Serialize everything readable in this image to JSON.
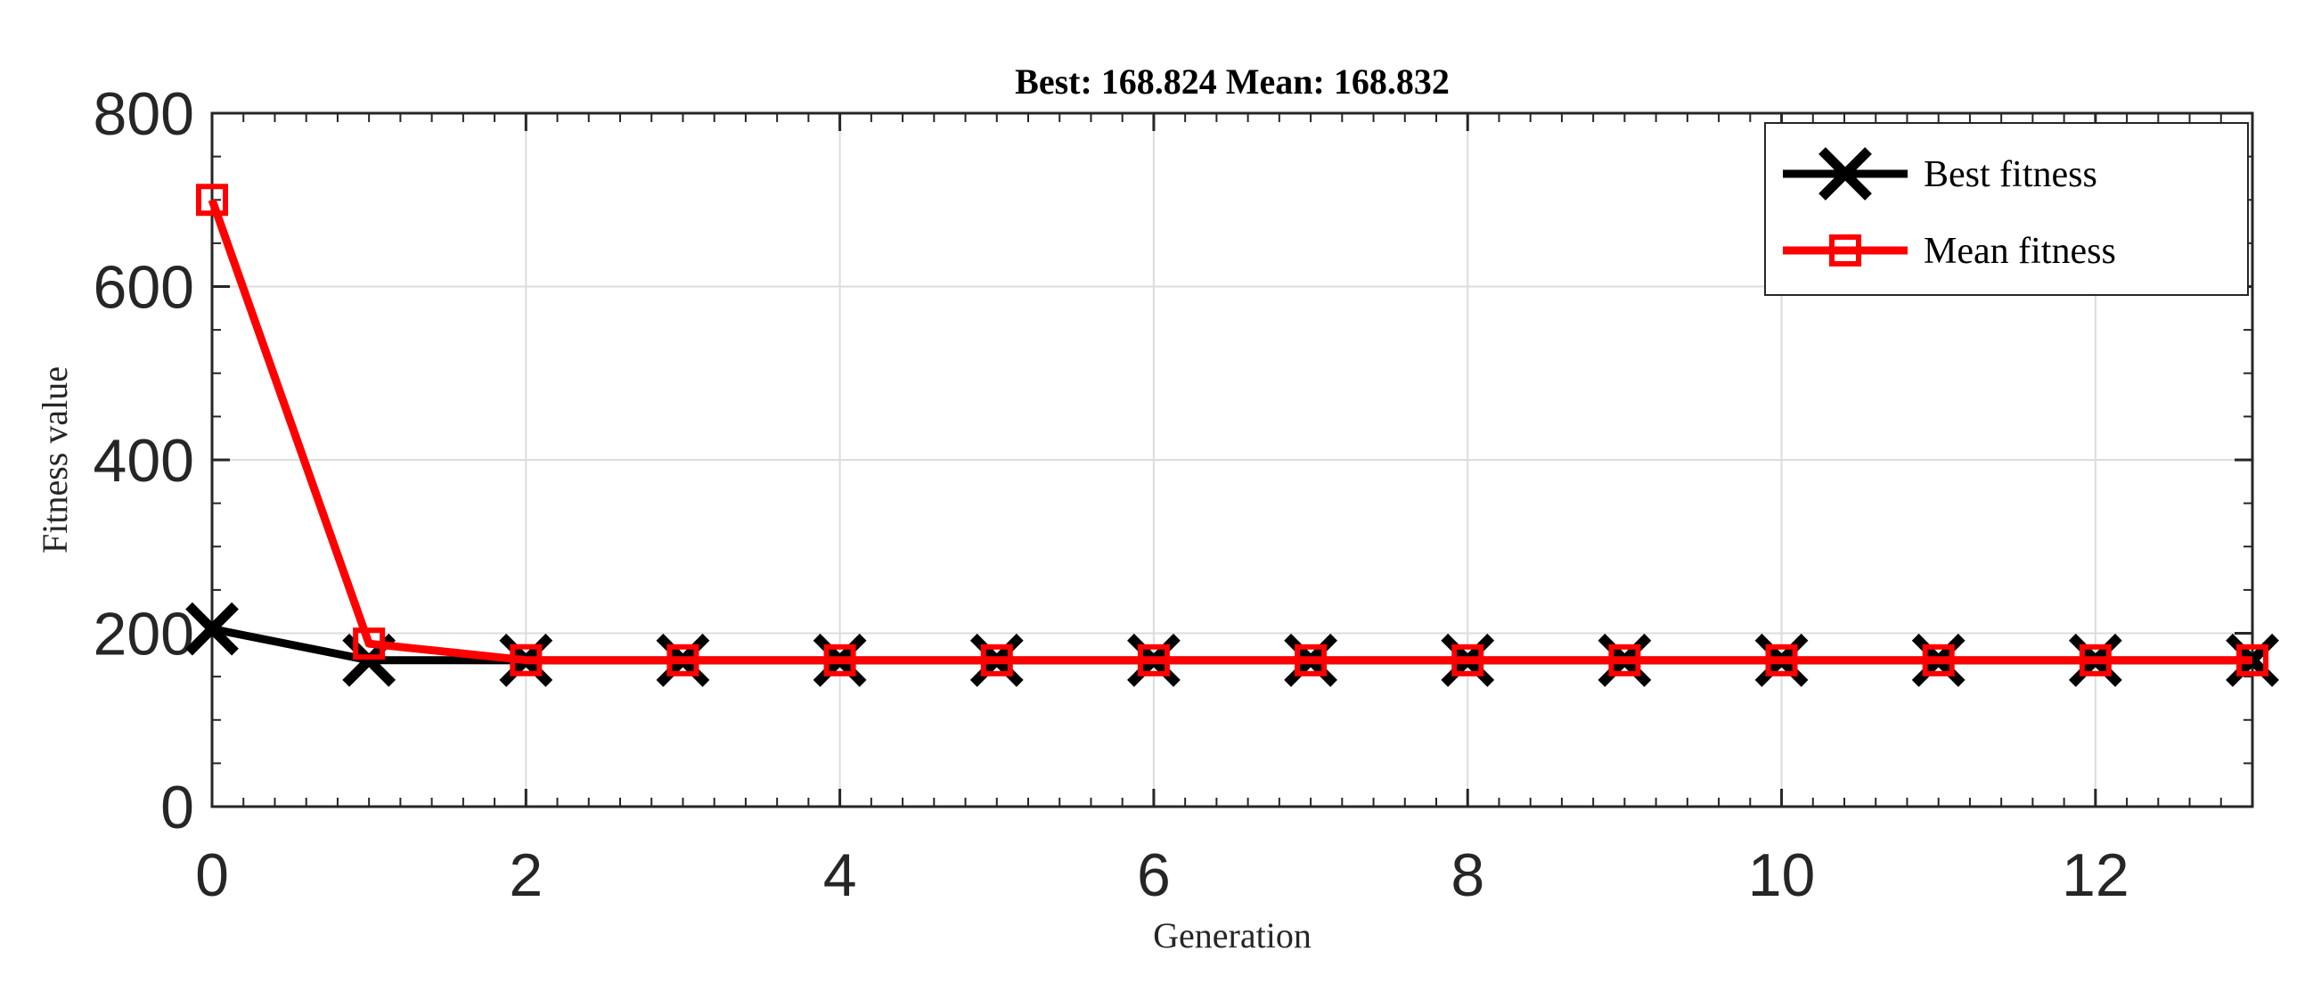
{
  "chart_data": {
    "type": "line",
    "title": "Best: 168.824 Mean: 168.832",
    "xlabel": "Generation",
    "ylabel": "Fitness value",
    "xlim": [
      0,
      13
    ],
    "ylim": [
      0,
      800
    ],
    "xticks": [
      0,
      2,
      4,
      6,
      8,
      10,
      12
    ],
    "yticks": [
      0,
      200,
      400,
      600,
      800
    ],
    "grid": true,
    "legend_position": "top-right",
    "x": [
      0,
      1,
      2,
      3,
      4,
      5,
      6,
      7,
      8,
      9,
      10,
      11,
      12,
      13
    ],
    "series": [
      {
        "name": "Best fitness",
        "color": "#000000",
        "marker": "x-mark",
        "values": [
          205,
          168.9,
          168.824,
          168.824,
          168.824,
          168.824,
          168.824,
          168.824,
          168.824,
          168.824,
          168.824,
          168.824,
          168.824,
          168.824
        ]
      },
      {
        "name": "Mean fitness",
        "color": "#ff0000",
        "marker": "square-mark",
        "values": [
          700,
          188,
          168.95,
          168.84,
          168.835,
          168.833,
          168.832,
          168.832,
          168.832,
          168.832,
          168.832,
          168.832,
          168.832,
          168.832
        ]
      }
    ]
  }
}
